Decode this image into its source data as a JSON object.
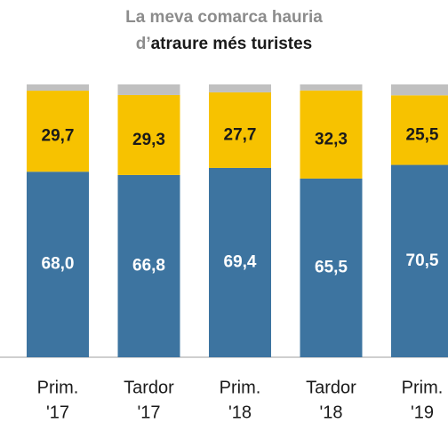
{
  "chart_data": {
    "type": "stacked_bar",
    "title": {
      "line1": "La meva comarca hauria",
      "line2_prefix": "d’",
      "line2": "atraure més turistes"
    },
    "categories": [
      [
        "Prim.",
        "'17"
      ],
      [
        "Tardor",
        "'17"
      ],
      [
        "Prim.",
        "'18"
      ],
      [
        "Tardor",
        "'18"
      ],
      [
        "Prim.",
        "'19"
      ]
    ],
    "series": [
      {
        "color": "#3d74a0",
        "label_color": "#ffffff",
        "values": [
          68.0,
          66.8,
          69.4,
          65.5,
          70.5
        ],
        "value_labels": [
          "68,0",
          "66,8",
          "69,4",
          "65,5",
          "70,5"
        ]
      },
      {
        "color": "#f7c200",
        "label_color": "#1a1a1a",
        "values": [
          29.7,
          29.3,
          27.7,
          32.3,
          25.5
        ],
        "value_labels": [
          "29,7",
          "29,3",
          "27,7",
          "32,3",
          "25,5"
        ]
      },
      {
        "color": "#c0c0c0",
        "values": [
          2.3,
          3.9,
          2.9,
          2.2,
          4.0
        ]
      }
    ],
    "ylim": [
      0,
      100
    ]
  }
}
